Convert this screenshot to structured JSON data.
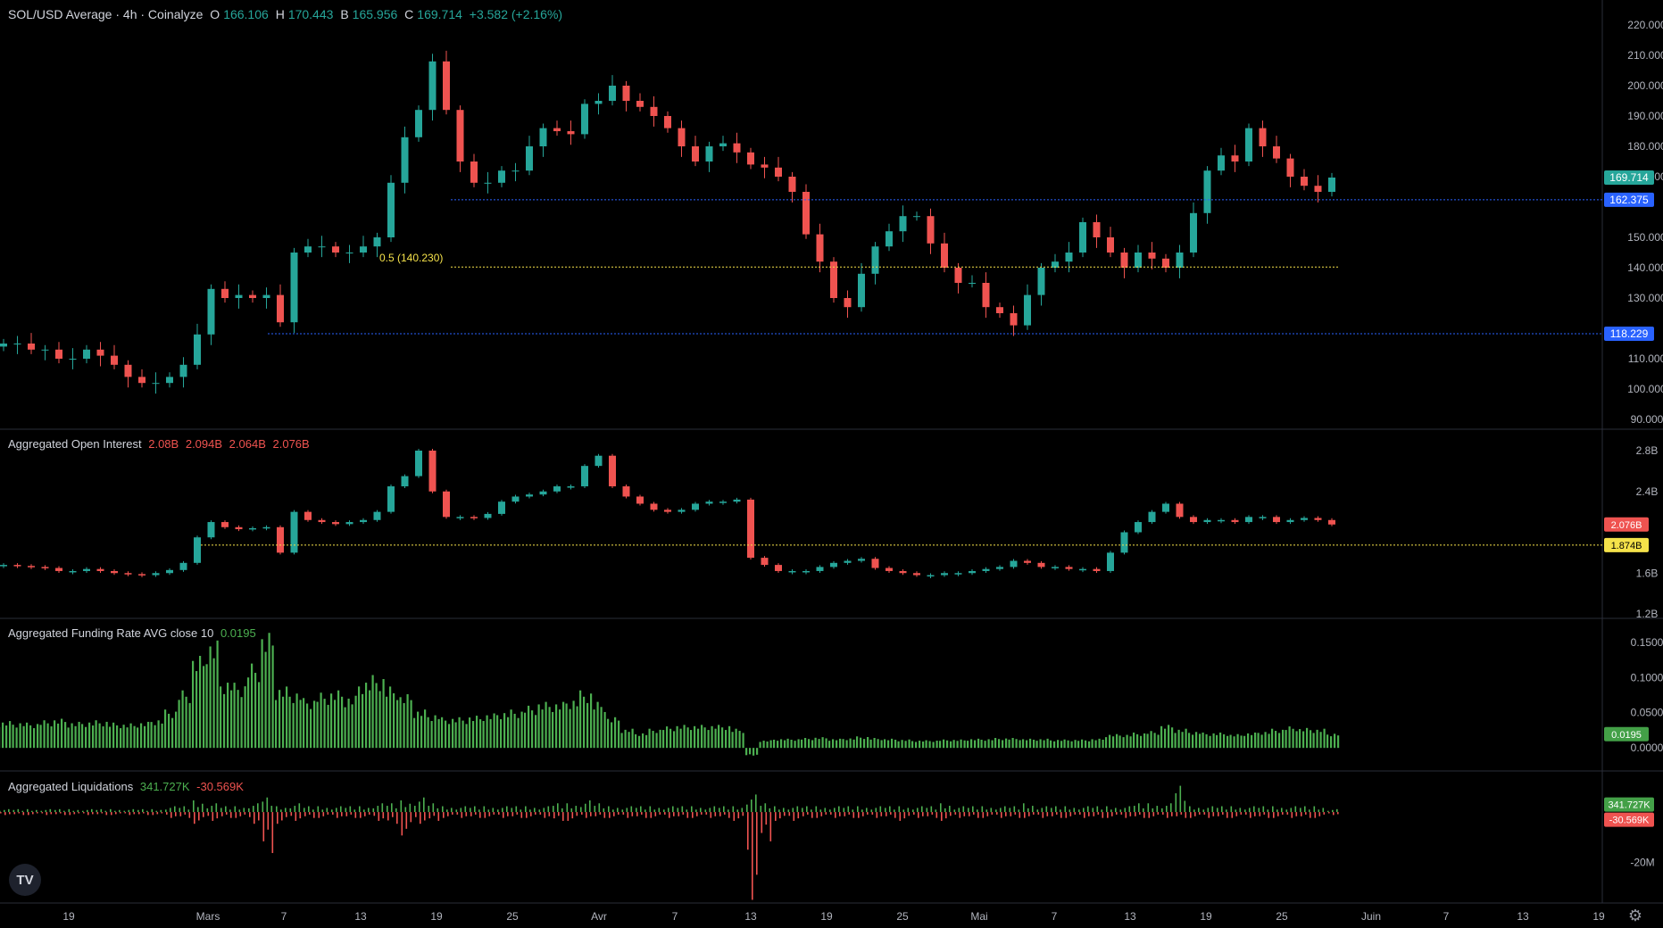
{
  "header": {
    "title": "SOL/USD Average · 4h · Coinalyze",
    "o_label": "O",
    "o": "166.106",
    "h_label": "H",
    "h": "170.443",
    "l_label": "B",
    "l": "165.956",
    "c_label": "C",
    "c": "169.714",
    "change": "+3.582 (+2.16%)"
  },
  "panes": {
    "oi": {
      "title": "Aggregated Open Interest",
      "v1": "2.08B",
      "v2": "2.094B",
      "v3": "2.064B",
      "v4": "2.076B"
    },
    "funding": {
      "title": "Aggregated Funding Rate AVG close 10",
      "value": "0.0195"
    },
    "liq": {
      "title": "Aggregated Liquidations",
      "long": "341.727K",
      "short": "-30.569K"
    }
  },
  "fib_label": "0.5 (140.230)",
  "logo_text": "TV",
  "colors": {
    "up": "#26a69a",
    "down": "#ef5350",
    "blue": "#2962ff",
    "yellow": "#f5e24a",
    "funding": "#4caf50",
    "axis": "#b2b5be"
  },
  "chart_data": [
    {
      "type": "candlestick",
      "title": "SOL/USD Average · 4h · Coinalyze",
      "x_ticks": [
        "19",
        "Mars",
        "7",
        "13",
        "19",
        "25",
        "Avr",
        "7",
        "13",
        "19",
        "25",
        "Mai",
        "7",
        "13",
        "19",
        "25",
        "Juin",
        "7",
        "13",
        "19"
      ],
      "y_ticks": [
        "220.000",
        "210.000",
        "200.000",
        "190.000",
        "180.000",
        "170.000",
        "150.000",
        "140.000",
        "130.000",
        "110.000",
        "100.000",
        "90.000"
      ],
      "ylim": [
        90,
        220
      ],
      "daily_close": [
        115,
        115,
        113,
        113,
        110,
        110,
        113,
        111,
        108,
        104,
        102,
        102,
        104,
        108,
        118,
        133,
        130,
        131,
        130,
        131,
        122,
        145,
        147,
        147,
        145,
        145,
        147,
        150,
        168,
        183,
        192,
        208,
        192,
        175,
        168,
        168,
        172,
        172,
        180,
        186,
        185,
        184,
        194,
        195,
        200,
        195,
        193,
        190,
        186,
        180,
        175,
        180,
        181,
        178,
        174,
        173,
        170,
        165,
        151,
        142,
        130,
        127,
        138,
        147,
        152,
        157,
        157,
        148,
        140,
        135,
        135,
        127,
        125,
        121,
        131,
        140,
        142,
        145,
        155,
        150,
        145,
        140,
        145,
        143,
        140,
        145,
        158,
        172,
        177,
        175,
        186,
        180,
        176,
        170,
        167,
        165,
        169.714
      ],
      "levels": [
        {
          "label": "162.375",
          "value": 162.375,
          "color": "#2962ff"
        },
        {
          "label": "118.229",
          "value": 118.229,
          "color": "#2962ff"
        },
        {
          "label": "0.5 (140.230)",
          "value": 140.23,
          "color": "#f5e24a"
        }
      ],
      "last_price_label": "169.714"
    },
    {
      "type": "line",
      "title": "Aggregated Open Interest",
      "y_ticks": [
        "2.8B",
        "2.4B",
        "1.6B",
        "1.2B"
      ],
      "ylim": [
        1.2,
        2.8
      ],
      "values": [
        1.68,
        1.67,
        1.66,
        1.65,
        1.62,
        1.62,
        1.64,
        1.62,
        1.6,
        1.59,
        1.58,
        1.6,
        1.63,
        1.7,
        1.95,
        2.1,
        2.05,
        2.03,
        2.04,
        2.05,
        1.8,
        2.2,
        2.12,
        2.1,
        2.08,
        2.1,
        2.12,
        2.2,
        2.45,
        2.55,
        2.8,
        2.4,
        2.15,
        2.15,
        2.14,
        2.18,
        2.3,
        2.35,
        2.37,
        2.4,
        2.45,
        2.45,
        2.65,
        2.75,
        2.45,
        2.35,
        2.28,
        2.22,
        2.2,
        2.22,
        2.28,
        2.3,
        2.3,
        2.32,
        1.75,
        1.68,
        1.62,
        1.62,
        1.62,
        1.66,
        1.7,
        1.72,
        1.74,
        1.65,
        1.62,
        1.6,
        1.58,
        1.58,
        1.6,
        1.6,
        1.62,
        1.64,
        1.66,
        1.72,
        1.7,
        1.66,
        1.66,
        1.64,
        1.64,
        1.62,
        1.8,
        2.0,
        2.1,
        2.2,
        2.28,
        2.15,
        2.1,
        2.12,
        2.12,
        2.1,
        2.15,
        2.15,
        2.1,
        2.12,
        2.14,
        2.12,
        2.076
      ],
      "levels": [
        {
          "label": "1.874B",
          "value": 1.874,
          "color": "#f5e24a"
        }
      ],
      "last_value_label": "2.076B"
    },
    {
      "type": "bar",
      "title": "Aggregated Funding Rate AVG close 10",
      "y_ticks": [
        "0.1500",
        "0.1000",
        "0.0500",
        "0.0000"
      ],
      "ylim": [
        -0.015,
        0.16
      ],
      "values": [
        0.035,
        0.034,
        0.033,
        0.036,
        0.038,
        0.034,
        0.035,
        0.036,
        0.033,
        0.032,
        0.034,
        0.038,
        0.05,
        0.075,
        0.12,
        0.14,
        0.09,
        0.085,
        0.11,
        0.15,
        0.08,
        0.075,
        0.065,
        0.072,
        0.075,
        0.068,
        0.09,
        0.095,
        0.08,
        0.07,
        0.05,
        0.045,
        0.04,
        0.04,
        0.042,
        0.045,
        0.048,
        0.05,
        0.055,
        0.06,
        0.06,
        0.065,
        0.075,
        0.06,
        0.04,
        0.025,
        0.02,
        0.025,
        0.028,
        0.03,
        0.03,
        0.03,
        0.03,
        0.025,
        -0.01,
        0.01,
        0.012,
        0.012,
        0.013,
        0.014,
        0.012,
        0.013,
        0.015,
        0.013,
        0.012,
        0.011,
        0.01,
        0.01,
        0.011,
        0.011,
        0.012,
        0.012,
        0.013,
        0.013,
        0.012,
        0.012,
        0.011,
        0.011,
        0.011,
        0.012,
        0.018,
        0.018,
        0.02,
        0.022,
        0.03,
        0.025,
        0.022,
        0.02,
        0.02,
        0.018,
        0.02,
        0.022,
        0.025,
        0.028,
        0.026,
        0.025,
        0.0195
      ],
      "last_value_label": "0.0195"
    },
    {
      "type": "bar",
      "title": "Aggregated Liquidations",
      "y_ticks": [
        "-20M"
      ],
      "ylim": [
        -32,
        10
      ],
      "long_values": [
        1,
        1,
        1,
        1,
        1,
        1,
        1,
        1,
        1,
        1,
        1,
        1,
        2,
        2,
        4,
        3,
        2,
        2,
        3,
        5,
        2,
        3,
        2,
        2,
        2,
        2,
        2,
        3,
        3,
        4,
        5,
        3,
        2,
        2,
        2,
        2,
        2,
        2,
        2,
        2,
        3,
        3,
        4,
        3,
        2,
        2,
        2,
        2,
        2,
        2,
        2,
        2,
        2,
        2,
        6,
        3,
        2,
        2,
        2,
        2,
        2,
        2,
        2,
        2,
        2,
        2,
        2,
        2,
        3,
        2,
        2,
        2,
        2,
        2,
        3,
        2,
        2,
        2,
        2,
        2,
        2,
        2,
        3,
        3,
        3,
        9,
        2,
        2,
        2,
        2,
        2,
        2,
        2,
        2,
        2,
        2,
        1
      ],
      "short_values": [
        -1,
        -1,
        -1,
        -1,
        -1,
        -1,
        -1,
        -1,
        -1,
        -1,
        -1,
        -1,
        -2,
        -2,
        -4,
        -3,
        -2,
        -2,
        -4,
        -14,
        -4,
        -3,
        -2,
        -2,
        -2,
        -2,
        -2,
        -3,
        -4,
        -8,
        -4,
        -3,
        -2,
        -2,
        -2,
        -2,
        -2,
        -2,
        -2,
        -2,
        -3,
        -3,
        -2,
        -2,
        -2,
        -2,
        -2,
        -2,
        -2,
        -2,
        -2,
        -2,
        -2,
        -3,
        -30,
        -10,
        -3,
        -3,
        -2,
        -2,
        -2,
        -2,
        -2,
        -2,
        -2,
        -3,
        -2,
        -2,
        -3,
        -2,
        -2,
        -2,
        -2,
        -2,
        -2,
        -2,
        -2,
        -2,
        -2,
        -2,
        -2,
        -2,
        -2,
        -2,
        -2,
        -2,
        -2,
        -2,
        -2,
        -2,
        -2,
        -2,
        -2,
        -2,
        -2,
        -2,
        -1
      ],
      "labels": [
        "341.727K",
        "-30.569K"
      ]
    }
  ]
}
